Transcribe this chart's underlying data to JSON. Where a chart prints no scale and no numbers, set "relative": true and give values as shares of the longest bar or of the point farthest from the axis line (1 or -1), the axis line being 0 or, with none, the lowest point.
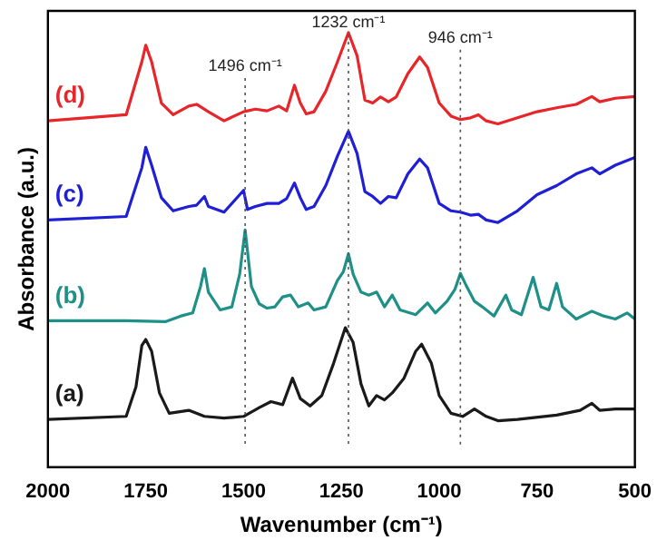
{
  "chart_data": {
    "type": "line",
    "relative": true,
    "xlabel": "Wavenumber (cm⁻¹)",
    "ylabel": "Absorbance (a.u.)",
    "xlim": [
      2000,
      500
    ],
    "xticks": [
      2000,
      1750,
      1500,
      1250,
      1000,
      750,
      500
    ],
    "tick_labels": "x",
    "grid": false,
    "legend": false,
    "marker": "none",
    "line_style": "solid",
    "ref_lines": [
      {
        "axis": "x",
        "value": 1496,
        "label": "1496 cm⁻¹",
        "line_style": "dotted",
        "color": "#555555"
      },
      {
        "axis": "x",
        "value": 1232,
        "label": "1232 cm⁻¹",
        "line_style": "dotted",
        "color": "#555555"
      },
      {
        "axis": "x",
        "value": 946,
        "label": "946 cm⁻¹",
        "line_style": "dotted",
        "color": "#555555"
      }
    ],
    "series": [
      {
        "name": "(d)",
        "color": "#e8262a",
        "x": [
          2000,
          1800,
          1760,
          1750,
          1735,
          1710,
          1680,
          1640,
          1620,
          1590,
          1550,
          1500,
          1470,
          1440,
          1410,
          1390,
          1370,
          1355,
          1340,
          1320,
          1290,
          1260,
          1232,
          1210,
          1190,
          1170,
          1150,
          1130,
          1110,
          1080,
          1050,
          1030,
          1000,
          970,
          946,
          920,
          900,
          880,
          850,
          800,
          750,
          700,
          650,
          610,
          590,
          550,
          500
        ],
        "values": [
          0.797,
          0.811,
          0.933,
          0.971,
          0.933,
          0.838,
          0.811,
          0.831,
          0.835,
          0.818,
          0.797,
          0.818,
          0.824,
          0.82,
          0.831,
          0.82,
          0.879,
          0.838,
          0.813,
          0.818,
          0.865,
          0.933,
          1.0,
          0.947,
          0.845,
          0.838,
          0.852,
          0.841,
          0.852,
          0.906,
          0.944,
          0.92,
          0.838,
          0.808,
          0.8,
          0.804,
          0.811,
          0.797,
          0.79,
          0.804,
          0.818,
          0.827,
          0.835,
          0.853,
          0.841,
          0.849,
          0.853
        ]
      },
      {
        "name": "(c)",
        "color": "#1f1fd6",
        "x": [
          2000,
          1800,
          1760,
          1750,
          1735,
          1710,
          1680,
          1640,
          1620,
          1600,
          1590,
          1550,
          1500,
          1490,
          1470,
          1440,
          1410,
          1390,
          1370,
          1355,
          1340,
          1320,
          1290,
          1260,
          1232,
          1210,
          1190,
          1170,
          1150,
          1130,
          1110,
          1080,
          1050,
          1030,
          1000,
          970,
          946,
          920,
          900,
          880,
          850,
          800,
          750,
          700,
          650,
          610,
          590,
          550,
          500
        ],
        "values": [
          0.569,
          0.577,
          0.689,
          0.736,
          0.695,
          0.62,
          0.59,
          0.6,
          0.603,
          0.623,
          0.6,
          0.587,
          0.637,
          0.593,
          0.6,
          0.607,
          0.607,
          0.618,
          0.654,
          0.62,
          0.593,
          0.6,
          0.648,
          0.716,
          0.773,
          0.722,
          0.634,
          0.623,
          0.607,
          0.623,
          0.62,
          0.675,
          0.709,
          0.689,
          0.607,
          0.59,
          0.587,
          0.58,
          0.582,
          0.569,
          0.563,
          0.59,
          0.627,
          0.648,
          0.675,
          0.689,
          0.675,
          0.695,
          0.713
        ]
      },
      {
        "name": "(b)",
        "color": "#1f9087",
        "x": [
          2000,
          1800,
          1700,
          1660,
          1630,
          1610,
          1600,
          1590,
          1560,
          1530,
          1510,
          1496,
          1480,
          1460,
          1440,
          1420,
          1400,
          1380,
          1360,
          1335,
          1320,
          1290,
          1260,
          1245,
          1232,
          1220,
          1200,
          1180,
          1160,
          1140,
          1120,
          1100,
          1060,
          1030,
          1010,
          980,
          960,
          946,
          930,
          910,
          890,
          860,
          830,
          815,
          790,
          760,
          740,
          720,
          700,
          685,
          650,
          610,
          580,
          550,
          520,
          500
        ],
        "values": [
          0.337,
          0.337,
          0.335,
          0.348,
          0.355,
          0.416,
          0.457,
          0.403,
          0.362,
          0.369,
          0.444,
          0.546,
          0.416,
          0.376,
          0.366,
          0.369,
          0.392,
          0.396,
          0.369,
          0.378,
          0.362,
          0.369,
          0.43,
          0.45,
          0.491,
          0.444,
          0.403,
          0.396,
          0.403,
          0.369,
          0.396,
          0.362,
          0.351,
          0.378,
          0.355,
          0.382,
          0.409,
          0.446,
          0.416,
          0.382,
          0.369,
          0.348,
          0.396,
          0.362,
          0.351,
          0.437,
          0.369,
          0.362,
          0.423,
          0.369,
          0.341,
          0.359,
          0.348,
          0.341,
          0.355,
          0.341
        ]
      },
      {
        "name": "(a)",
        "color": "#1a1a1a",
        "x": [
          2000,
          1800,
          1775,
          1760,
          1750,
          1735,
          1715,
          1690,
          1640,
          1600,
          1550,
          1500,
          1460,
          1430,
          1400,
          1375,
          1355,
          1330,
          1300,
          1270,
          1240,
          1220,
          1200,
          1180,
          1160,
          1140,
          1120,
          1090,
          1060,
          1045,
          1020,
          1000,
          970,
          940,
          910,
          880,
          850,
          800,
          700,
          640,
          610,
          590,
          550,
          500
        ],
        "values": [
          0.11,
          0.117,
          0.185,
          0.28,
          0.294,
          0.267,
          0.171,
          0.124,
          0.131,
          0.117,
          0.113,
          0.117,
          0.137,
          0.151,
          0.144,
          0.205,
          0.158,
          0.141,
          0.165,
          0.239,
          0.321,
          0.287,
          0.192,
          0.141,
          0.165,
          0.155,
          0.171,
          0.205,
          0.267,
          0.283,
          0.239,
          0.165,
          0.124,
          0.117,
          0.134,
          0.117,
          0.107,
          0.11,
          0.12,
          0.131,
          0.147,
          0.131,
          0.134,
          0.134
        ]
      }
    ]
  }
}
